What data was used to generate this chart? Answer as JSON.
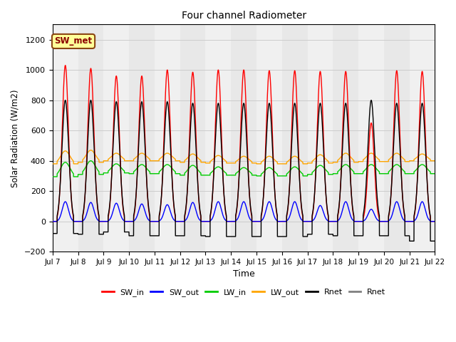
{
  "title": "Four channel Radiometer",
  "xlabel": "Time",
  "ylabel": "Solar Radiation (W/m2)",
  "ylim": [
    -200,
    1300
  ],
  "yticks": [
    -200,
    0,
    200,
    400,
    600,
    800,
    1000,
    1200
  ],
  "annotation_text": "SW_met",
  "annotation_bg": "#FFFF99",
  "annotation_edge": "#8B4513",
  "num_days": 15,
  "SW_in_peak": [
    1030,
    1010,
    960,
    960,
    1000,
    985,
    1000,
    1000,
    995,
    995,
    990,
    990,
    650,
    995,
    990
  ],
  "SW_out_peak": [
    130,
    125,
    120,
    115,
    110,
    125,
    130,
    130,
    130,
    130,
    105,
    130,
    80,
    130,
    130
  ],
  "LW_in_base": [
    295,
    310,
    320,
    315,
    315,
    305,
    305,
    305,
    300,
    300,
    310,
    315,
    315,
    315,
    315
  ],
  "LW_in_peak": [
    390,
    400,
    380,
    375,
    375,
    370,
    360,
    355,
    355,
    360,
    370,
    375,
    375,
    375,
    375
  ],
  "LW_out_base": [
    380,
    390,
    400,
    400,
    400,
    390,
    385,
    385,
    380,
    380,
    385,
    390,
    395,
    395,
    400
  ],
  "LW_out_peak": [
    465,
    470,
    450,
    450,
    450,
    445,
    435,
    430,
    430,
    430,
    440,
    450,
    450,
    450,
    445
  ],
  "Rnet_peak": [
    800,
    800,
    790,
    790,
    790,
    780,
    780,
    780,
    780,
    780,
    780,
    780,
    800,
    780,
    780
  ],
  "Rnet_night": [
    -80,
    -85,
    -70,
    -95,
    -95,
    -95,
    -100,
    -100,
    -100,
    -100,
    -85,
    -95,
    -95,
    -95,
    -130
  ],
  "colors": {
    "SW_in": "#FF0000",
    "SW_out": "#0000FF",
    "LW_in": "#00CC00",
    "LW_out": "#FFA500",
    "Rnet1": "#000000",
    "Rnet2": "#555555"
  },
  "legend_labels": [
    "SW_in",
    "SW_out",
    "LW_in",
    "LW_out",
    "Rnet",
    "Rnet"
  ],
  "legend_colors": [
    "#FF0000",
    "#0000FF",
    "#00CC00",
    "#FFA500",
    "#000000",
    "#808080"
  ],
  "grid_color": "#CCCCCC",
  "bg_color": "#E8E8E8",
  "bg_color_light": "#F0F0F0"
}
